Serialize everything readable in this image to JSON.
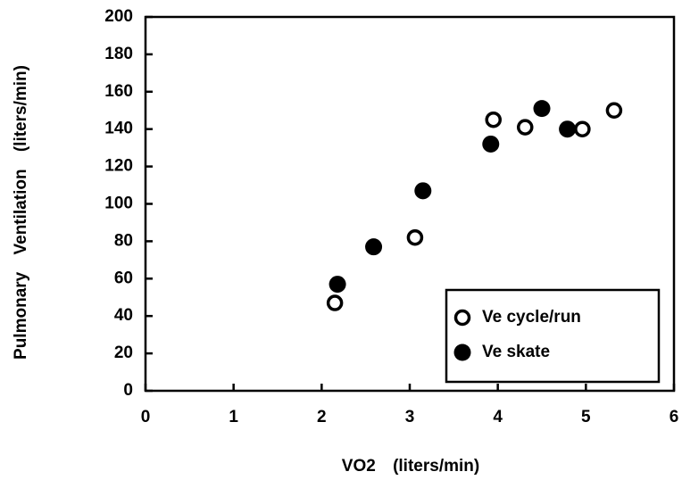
{
  "chart_data": {
    "type": "scatter",
    "xlabel": "VO2 (liters/min)",
    "ylabel": "Pulmonary Ventilation (liters/min)",
    "xlim": [
      0,
      6
    ],
    "xticks": [
      0,
      1,
      2,
      3,
      4,
      5,
      6
    ],
    "ylim": [
      0,
      200
    ],
    "yticks": [
      0,
      20,
      40,
      60,
      80,
      100,
      120,
      140,
      160,
      180,
      200
    ],
    "legend": "lower right",
    "series": [
      {
        "name": "Ve cycle/run",
        "color": "#000000",
        "filled": false,
        "x": [
          2.15,
          3.06,
          3.95,
          4.31,
          4.96,
          5.32
        ],
        "values": [
          47,
          82,
          145,
          141,
          140,
          150
        ]
      },
      {
        "name": "Ve skate",
        "color": "#000000",
        "filled": true,
        "x": [
          2.18,
          2.59,
          3.15,
          3.92,
          4.5,
          4.79
        ],
        "values": [
          57,
          77,
          107,
          132,
          151,
          140
        ]
      }
    ]
  }
}
